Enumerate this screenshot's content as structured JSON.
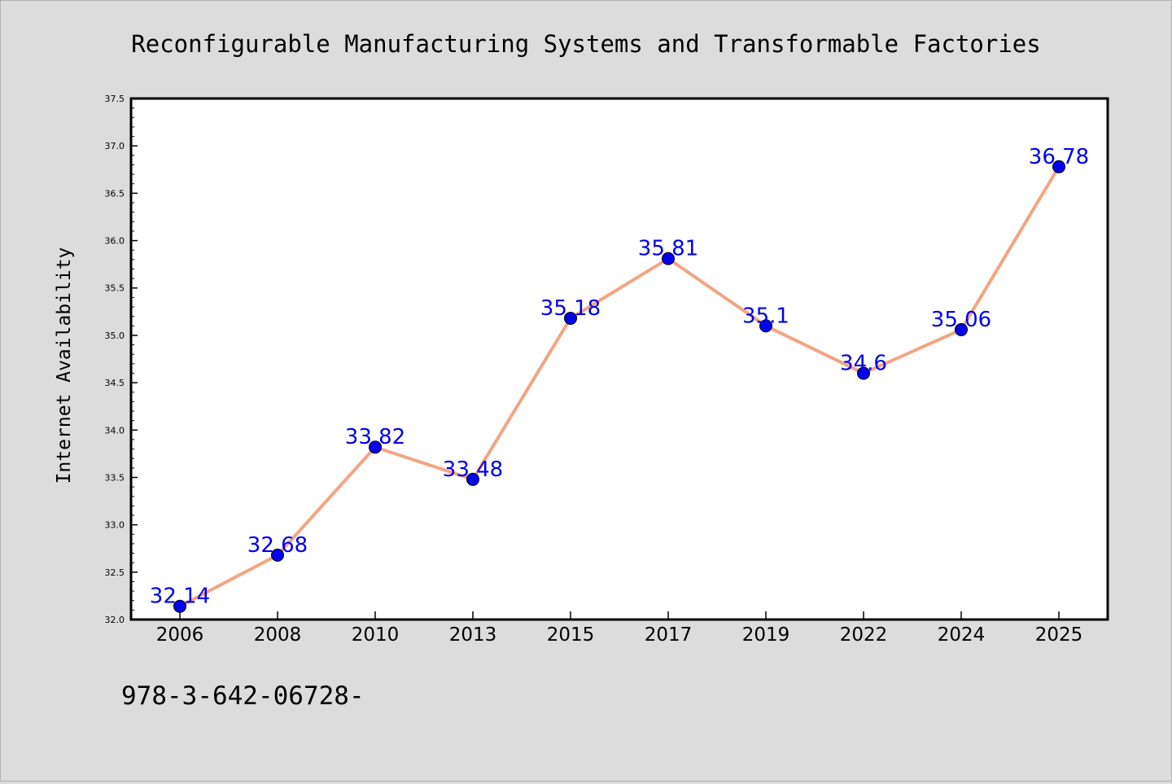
{
  "chart_data": {
    "type": "line",
    "title": "Reconfigurable Manufacturing Systems and Transformable Factories",
    "xlabel": "",
    "ylabel": "Internet Availability",
    "categories": [
      "2006",
      "2008",
      "2010",
      "2013",
      "2015",
      "2017",
      "2019",
      "2022",
      "2024",
      "2025"
    ],
    "series": [
      {
        "values": [
          32.14,
          32.68,
          33.82,
          33.48,
          35.18,
          35.81,
          35.1,
          34.6,
          35.06,
          36.78
        ],
        "labels": [
          "32.14",
          "32.68",
          "33.82",
          "33.48",
          "35.18",
          "35.81",
          "35.1",
          "34.6",
          "35.06",
          "36.78"
        ]
      }
    ],
    "ylim": [
      32.0,
      37.5
    ],
    "yticks": [
      "32.0",
      "32.5",
      "33.0",
      "33.5",
      "34.0",
      "34.5",
      "35.0",
      "35.5",
      "36.0",
      "36.5",
      "37.0",
      "37.5"
    ],
    "grid": false,
    "legend": "none",
    "colors": {
      "line": "#f4a582",
      "marker": "#0000ee",
      "data_label": "#0000ee",
      "plot_bg": "#ffffff",
      "page_bg": "#dcdcdc"
    }
  },
  "footer": {
    "isbn": "978-3-642-06728-"
  }
}
